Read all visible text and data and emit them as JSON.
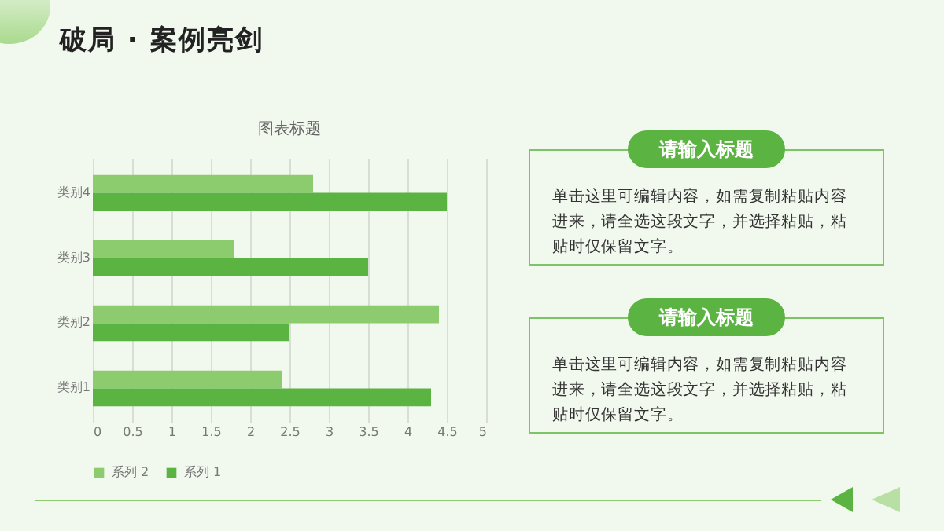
{
  "chart_data": {
    "type": "bar",
    "orientation": "horizontal",
    "title": "图表标题",
    "categories": [
      "类别4",
      "类别3",
      "类别2",
      "类别1"
    ],
    "series": [
      {
        "name": "系列 2",
        "color": "#8dcc6e",
        "values": [
          2.8,
          1.8,
          4.4,
          2.4
        ]
      },
      {
        "name": "系列 1",
        "color": "#5bb342",
        "values": [
          4.5,
          3.5,
          2.5,
          4.3
        ]
      }
    ],
    "xlim": [
      0,
      5
    ],
    "xticks": [
      0,
      0.5,
      1,
      1.5,
      2,
      2.5,
      3,
      3.5,
      4,
      4.5,
      5
    ],
    "grid": "x",
    "legend": "bottom",
    "annotations": [
      "破局 · 案例亮剑",
      "请输入标题",
      "单击这里可编辑内容，如需复制粘贴内容进来，请全选这段文字，并选择粘贴，粘贴时仅保留文字。",
      "请输入标题",
      "单击这里可编辑内容，如需复制粘贴内容进来，请全选这段文字，并选择粘贴，粘贴时仅保留文字。"
    ]
  }
}
